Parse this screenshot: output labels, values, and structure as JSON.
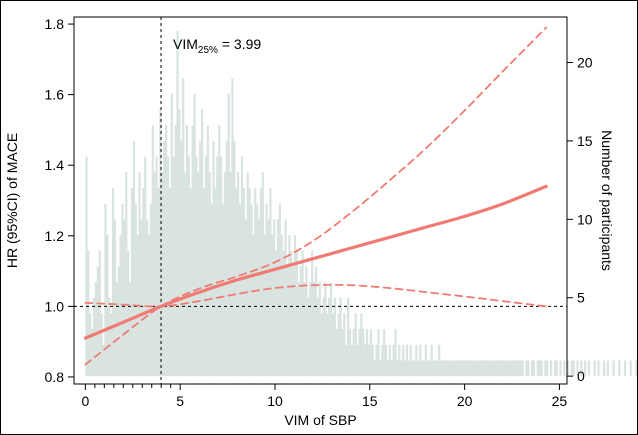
{
  "chart_data": {
    "type": "line",
    "title": "",
    "xlabel": "VIM of SBP",
    "ylabel": "HR (95%CI) of MACE",
    "y2label": "Number of participants",
    "xlim": [
      -0.6,
      25.4
    ],
    "ylim": [
      0.78,
      1.82
    ],
    "y2lim": [
      -0.5,
      22.9
    ],
    "x_ticks": [
      0,
      5,
      10,
      15,
      20,
      25
    ],
    "x_tick_labels": [
      "0",
      "5",
      "10",
      "15",
      "20",
      "25"
    ],
    "x_minor_ticks": [
      0.5,
      1,
      1.5,
      2,
      2.5,
      3,
      3.5,
      4,
      4.5
    ],
    "y_ticks": [
      0.8,
      1.0,
      1.2,
      1.4,
      1.6,
      1.8
    ],
    "y_tick_labels": [
      "0.8",
      "1.0",
      "1.2",
      "1.4",
      "1.6",
      "1.8"
    ],
    "y2_ticks": [
      0,
      5,
      10,
      15,
      20
    ],
    "y2_tick_labels": [
      "0",
      "5",
      "10",
      "15",
      "20"
    ],
    "grid": false,
    "colors": {
      "hr": "#f07b74",
      "hist": "#d9e3df",
      "ref": "#000000"
    },
    "reference_lines": {
      "x": 3.99,
      "y": 1.0
    },
    "annotation": {
      "prefix": "VIM",
      "subscript": "25%",
      "suffix": " = 3.99"
    },
    "series": [
      {
        "role": "hr",
        "style": "solid",
        "x": [
          0,
          2,
          3.99,
          6,
          8,
          10,
          12,
          14,
          16,
          18,
          20,
          22,
          24.3
        ],
        "y": [
          0.91,
          0.955,
          1.0,
          1.04,
          1.075,
          1.105,
          1.135,
          1.165,
          1.195,
          1.225,
          1.255,
          1.29,
          1.34
        ]
      },
      {
        "role": "upper_ci",
        "style": "dashed",
        "x": [
          0,
          2,
          3.99,
          6,
          8,
          10,
          12,
          14,
          16,
          18,
          20,
          22,
          24.3
        ],
        "y": [
          0.835,
          0.92,
          1.0,
          1.05,
          1.085,
          1.125,
          1.185,
          1.265,
          1.355,
          1.45,
          1.555,
          1.665,
          1.79
        ]
      },
      {
        "role": "lower_ci",
        "style": "dashed",
        "x": [
          0,
          2,
          3.99,
          6,
          8,
          10,
          12,
          14,
          16,
          18,
          20,
          22,
          24.3
        ],
        "y": [
          1.01,
          1.005,
          1.0,
          1.015,
          1.035,
          1.052,
          1.06,
          1.06,
          1.052,
          1.04,
          1.028,
          1.015,
          1.0
        ]
      }
    ],
    "histogram": {
      "bin_width": 0.1,
      "x_start": 0,
      "counts": [
        14,
        8,
        4,
        3,
        5,
        6,
        7,
        8,
        4,
        2,
        11,
        9,
        5,
        4,
        12,
        10,
        6,
        7,
        9,
        11,
        10,
        13,
        8,
        6,
        12,
        15,
        11,
        9,
        13,
        10,
        12,
        14,
        10,
        9,
        11,
        16,
        13,
        14,
        12,
        17,
        13,
        15,
        16,
        14,
        12,
        18,
        14,
        16,
        22,
        17,
        15,
        19,
        13,
        16,
        14,
        12,
        16,
        18,
        14,
        13,
        15,
        17,
        12,
        14,
        16,
        13,
        11,
        15,
        12,
        14,
        16,
        14,
        11,
        13,
        15,
        18,
        13,
        19,
        15,
        12,
        13,
        11,
        14,
        12,
        10,
        13,
        12,
        11,
        9,
        12,
        11,
        10,
        12,
        13,
        9,
        11,
        10,
        12,
        9,
        10,
        8,
        10,
        11,
        9,
        8,
        10,
        7,
        9,
        8,
        7,
        9,
        8,
        6,
        7,
        8,
        6,
        7,
        5,
        6,
        8,
        6,
        7,
        5,
        6,
        4,
        5,
        6,
        4,
        5,
        6,
        4,
        5,
        3,
        4,
        5,
        3,
        4,
        2,
        5,
        3,
        2,
        3,
        4,
        2,
        3,
        4,
        3,
        2,
        3,
        2,
        3,
        2,
        1,
        2,
        3,
        1,
        2,
        3,
        2,
        1,
        2,
        1,
        2,
        3,
        1,
        2,
        1,
        2,
        1,
        2,
        1,
        2,
        1,
        1,
        2,
        1,
        2,
        1,
        1,
        2,
        1,
        1,
        2,
        1,
        1,
        1,
        2,
        1,
        1,
        1,
        1,
        1,
        1,
        1,
        1,
        1,
        1,
        1,
        1,
        1,
        1,
        1,
        1,
        1,
        1,
        1,
        1,
        1,
        1,
        1,
        1,
        1,
        1,
        1,
        1,
        1,
        1,
        1,
        1,
        1,
        1,
        1,
        1,
        1,
        1,
        1,
        1,
        1,
        1,
        1,
        1,
        0,
        1,
        1,
        0,
        1,
        1,
        0,
        1,
        1,
        1,
        0,
        1,
        1,
        0,
        1,
        0,
        1,
        1,
        0,
        1,
        0,
        1,
        0,
        1,
        0,
        1,
        1,
        0,
        1,
        0,
        1,
        0,
        1,
        0,
        1,
        0,
        0,
        1,
        0,
        1,
        0,
        0,
        1,
        0,
        1,
        0,
        0,
        1,
        0,
        0,
        1,
        0,
        0,
        1,
        0,
        0,
        1,
        0,
        0,
        1,
        0,
        0,
        0,
        1,
        0,
        0,
        1,
        0,
        0,
        0,
        1,
        0,
        0,
        0,
        1,
        0,
        0,
        0,
        1,
        0,
        0,
        0,
        1,
        0,
        0,
        0,
        0,
        1,
        0,
        0,
        0,
        1,
        0,
        0,
        0,
        0,
        1,
        0,
        0,
        0,
        1,
        0,
        0,
        0,
        0,
        1,
        0,
        0,
        0,
        0,
        0,
        0,
        1,
        0,
        0,
        0,
        0,
        0,
        1
      ]
    }
  }
}
